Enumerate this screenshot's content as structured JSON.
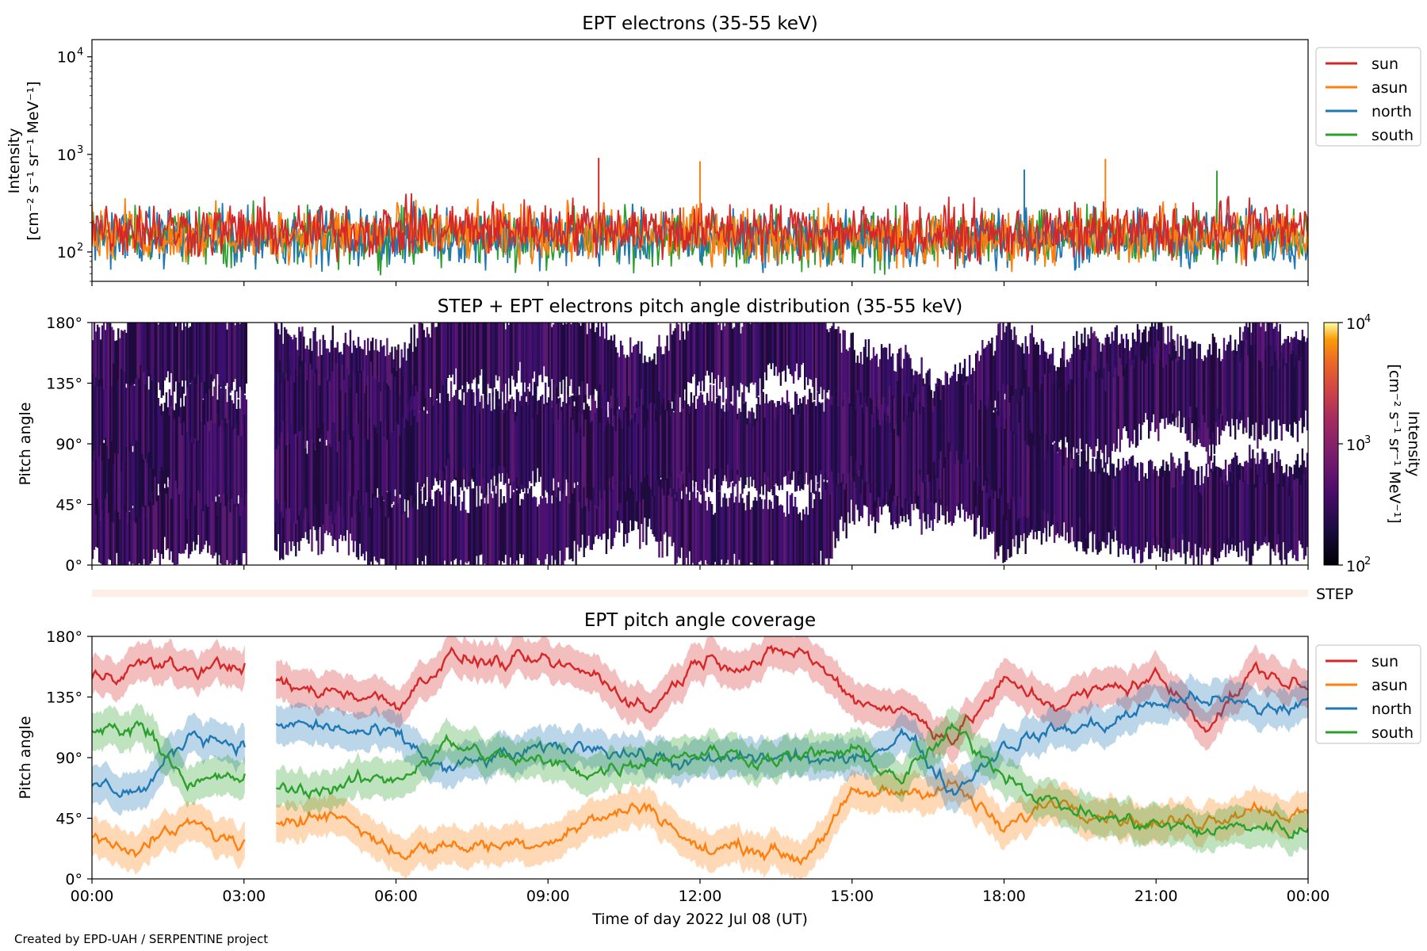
{
  "footer": "Created by EPD-UAH / SERPENTINE project",
  "xaxis": {
    "label": "Time of day 2022 Jul 08 (UT)",
    "ticks": [
      "00:00",
      "03:00",
      "06:00",
      "09:00",
      "12:00",
      "15:00",
      "18:00",
      "21:00",
      "00:00"
    ],
    "range_hours": [
      0,
      24
    ]
  },
  "colors": {
    "sun": "#d62728",
    "asun": "#ff7f0e",
    "north": "#1f77b4",
    "south": "#2ca02c",
    "step_band": "#fdeee6"
  },
  "panel1": {
    "title": "EPT electrons (35-55 keV)",
    "ylabel_line1": "Intensity",
    "ylabel_line2": "[cm⁻² s⁻¹ sr⁻¹ MeV⁻¹]",
    "ytick_labels": [
      "10",
      "10",
      "10"
    ],
    "ytick_exps": [
      "2",
      "3",
      "4"
    ]
  },
  "panel2": {
    "title": "STEP + EPT electrons pitch angle distribution (35-55 keV)",
    "ylabel": "Pitch angle",
    "yticks": [
      "0°",
      "45°",
      "90°",
      "135°",
      "180°"
    ],
    "colorbar_label_line1": "Intensity",
    "colorbar_label_line2": "[cm⁻² s⁻¹ sr⁻¹ MeV⁻¹]",
    "colorbar_tick_labels": [
      "10",
      "10",
      "10"
    ],
    "colorbar_tick_exps": [
      "2",
      "3",
      "4"
    ]
  },
  "step_label": "STEP",
  "panel3": {
    "title": "EPT pitch angle coverage",
    "ylabel": "Pitch angle",
    "yticks": [
      "0°",
      "45°",
      "90°",
      "135°",
      "180°"
    ]
  },
  "chart_data": [
    {
      "type": "line",
      "title": "EPT electrons (35-55 keV)",
      "xlabel": "Time of day 2022 Jul 08 (UT)",
      "ylabel": "Intensity [cm⁻² s⁻¹ sr⁻¹ MeV⁻¹]",
      "yscale": "log",
      "xlim": [
        0,
        24
      ],
      "ylim": [
        50,
        15000
      ],
      "legend": "right",
      "series": [
        {
          "name": "sun",
          "x": [
            0,
            2,
            4,
            6,
            8,
            10,
            12,
            14,
            16,
            18,
            20,
            22,
            24
          ],
          "y": [
            180,
            170,
            160,
            170,
            175,
            180,
            165,
            170,
            160,
            150,
            160,
            170,
            180
          ]
        },
        {
          "name": "asun",
          "x": [
            0,
            2,
            4,
            6,
            8,
            10,
            12,
            14,
            16,
            18,
            20,
            22,
            24
          ],
          "y": [
            160,
            150,
            150,
            160,
            150,
            155,
            150,
            145,
            140,
            135,
            150,
            150,
            150
          ]
        },
        {
          "name": "north",
          "x": [
            0,
            2,
            4,
            6,
            8,
            10,
            12,
            14,
            16,
            18,
            20,
            22,
            24
          ],
          "y": [
            150,
            140,
            140,
            150,
            145,
            140,
            140,
            135,
            130,
            130,
            140,
            140,
            145
          ]
        },
        {
          "name": "south",
          "x": [
            0,
            2,
            4,
            6,
            8,
            10,
            12,
            14,
            16,
            18,
            20,
            22,
            24
          ],
          "y": [
            150,
            145,
            140,
            145,
            140,
            140,
            140,
            135,
            130,
            130,
            140,
            140,
            140
          ]
        }
      ],
      "peaks": [
        {
          "series": "sun",
          "x": 10.0,
          "y": 920
        },
        {
          "series": "asun",
          "x": 12.0,
          "y": 850
        },
        {
          "series": "asun",
          "x": 20.0,
          "y": 900
        },
        {
          "series": "north",
          "x": 18.4,
          "y": 700
        },
        {
          "series": "south",
          "x": 22.2,
          "y": 680
        }
      ]
    },
    {
      "type": "heatmap",
      "title": "STEP + EPT electrons pitch angle distribution (35-55 keV)",
      "ylabel": "Pitch angle",
      "ylim": [
        0,
        180
      ],
      "colorscale": "inferno",
      "color_range": [
        100,
        10000
      ],
      "color_scale_type": "log",
      "data_gap_hours": [
        [
          3.05,
          3.6
        ]
      ],
      "note_intensity_typical": 200
    },
    {
      "type": "line",
      "title": "EPT pitch angle coverage",
      "xlabel": "Time of day 2022 Jul 08 (UT)",
      "ylabel": "Pitch angle",
      "xlim": [
        0,
        24
      ],
      "ylim": [
        0,
        180
      ],
      "legend": "right",
      "bands": true,
      "data_gap_hours": [
        [
          3.05,
          3.6
        ]
      ],
      "series": [
        {
          "name": "sun",
          "x": [
            0,
            1,
            2,
            3,
            4,
            5,
            6,
            7,
            8,
            9,
            10,
            11,
            12,
            13,
            14,
            15,
            16,
            17,
            18,
            19,
            20,
            21,
            22,
            23,
            24
          ],
          "y": [
            150,
            160,
            155,
            160,
            140,
            140,
            130,
            165,
            160,
            160,
            150,
            125,
            165,
            160,
            170,
            135,
            125,
            105,
            145,
            130,
            140,
            150,
            115,
            155,
            140
          ]
        },
        {
          "name": "asun",
          "x": [
            0,
            1,
            2,
            3,
            4,
            5,
            6,
            7,
            8,
            9,
            10,
            11,
            12,
            13,
            14,
            15,
            16,
            17,
            18,
            19,
            20,
            21,
            22,
            23,
            24
          ],
          "y": [
            30,
            25,
            40,
            25,
            50,
            45,
            20,
            25,
            25,
            30,
            45,
            55,
            20,
            25,
            15,
            60,
            65,
            70,
            35,
            60,
            50,
            40,
            45,
            55,
            45
          ]
        },
        {
          "name": "north",
          "x": [
            0,
            1,
            2,
            3,
            4,
            5,
            6,
            7,
            8,
            9,
            10,
            11,
            12,
            13,
            14,
            15,
            16,
            17,
            18,
            19,
            20,
            21,
            22,
            23,
            24
          ],
          "y": [
            70,
            65,
            110,
            100,
            115,
            110,
            105,
            80,
            90,
            95,
            100,
            90,
            85,
            90,
            90,
            85,
            110,
            65,
            100,
            110,
            115,
            130,
            135,
            125,
            130
          ]
        },
        {
          "name": "south",
          "x": [
            0,
            1,
            2,
            3,
            4,
            5,
            6,
            7,
            8,
            9,
            10,
            11,
            12,
            13,
            14,
            15,
            16,
            17,
            18,
            19,
            20,
            21,
            22,
            23,
            24
          ],
          "y": [
            110,
            115,
            70,
            75,
            65,
            70,
            75,
            100,
            90,
            85,
            80,
            90,
            95,
            90,
            90,
            95,
            75,
            110,
            80,
            55,
            45,
            40,
            35,
            40,
            35
          ]
        }
      ]
    }
  ]
}
